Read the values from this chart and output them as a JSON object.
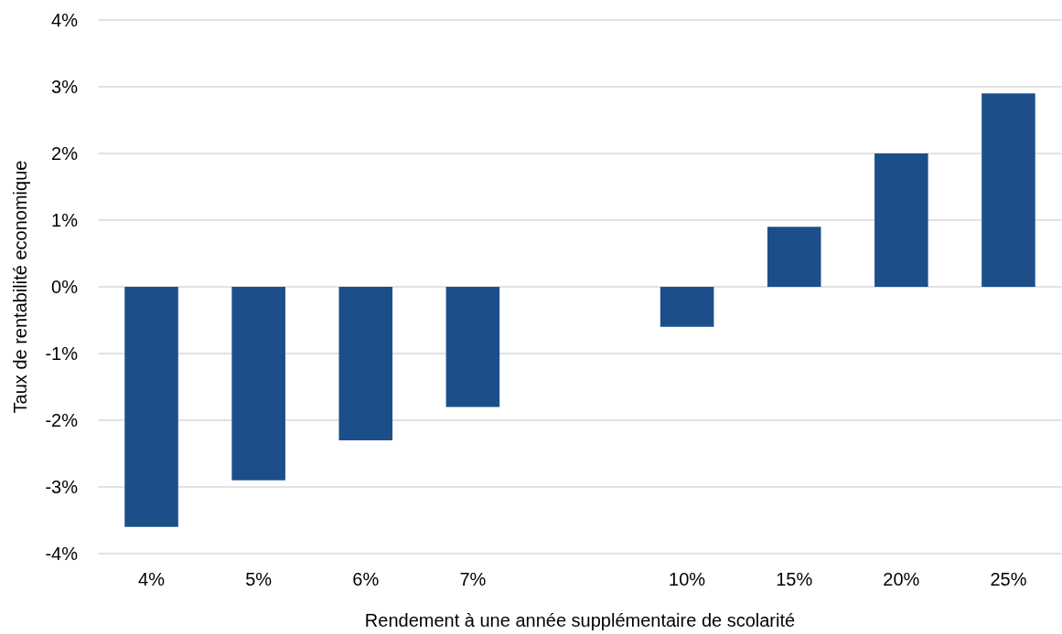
{
  "chart_data": {
    "type": "bar",
    "xlabel": "Rendement à une année supplémentaire de scolarité",
    "ylabel": "Taux de rentabilité economique",
    "categories": [
      "4%",
      "5%",
      "6%",
      "7%",
      null,
      "10%",
      "15%",
      "20%",
      "25%"
    ],
    "values": [
      -3.6,
      -2.9,
      -2.3,
      -1.8,
      null,
      -0.6,
      0.9,
      2.0,
      2.9
    ],
    "color": "#1c4f8a",
    "ylim": [
      -4,
      4
    ],
    "yticks": [
      {
        "value": -4,
        "label": "-4%"
      },
      {
        "value": -3,
        "label": "-3%"
      },
      {
        "value": -2,
        "label": "-2%"
      },
      {
        "value": -1,
        "label": "-1%"
      },
      {
        "value": 0,
        "label": "0%"
      },
      {
        "value": 1,
        "label": "1%"
      },
      {
        "value": 2,
        "label": "2%"
      },
      {
        "value": 3,
        "label": "3%"
      },
      {
        "value": 4,
        "label": "4%"
      }
    ],
    "grid": "y"
  }
}
